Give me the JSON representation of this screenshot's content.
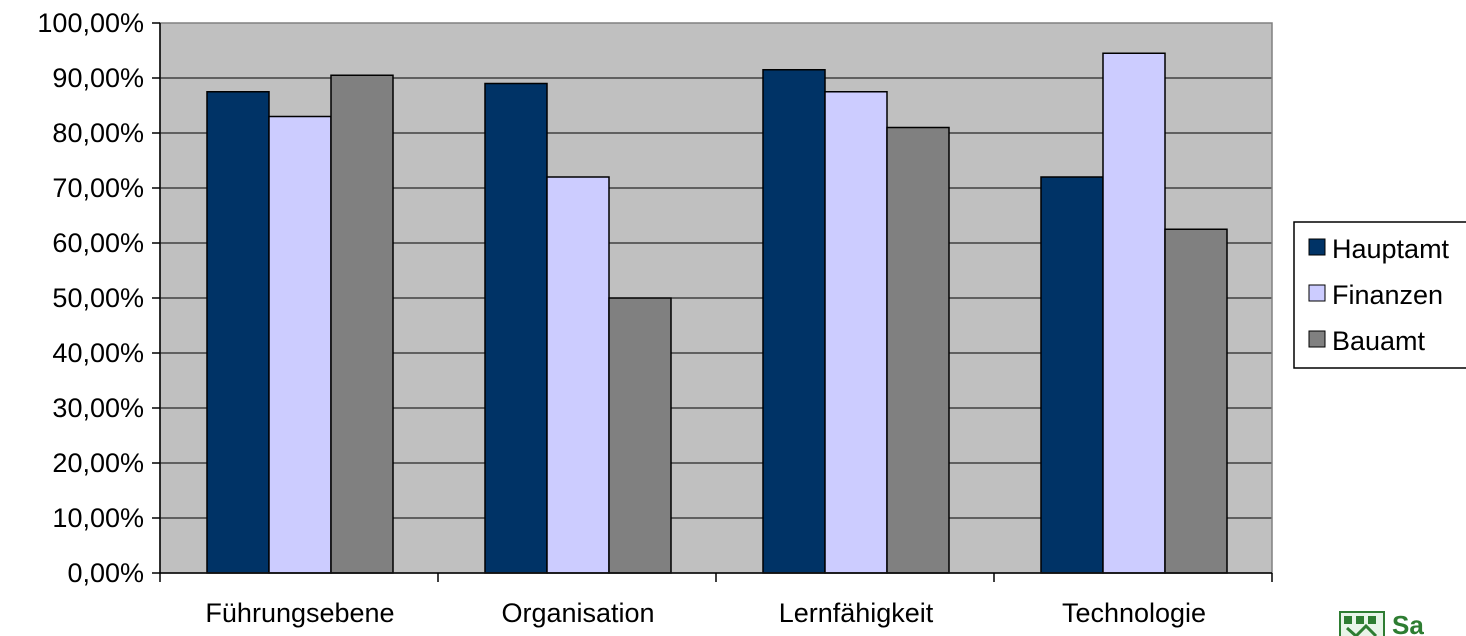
{
  "chart_data": {
    "type": "bar",
    "categories": [
      "Führungsebene",
      "Organisation",
      "Lernfähigkeit",
      "Technologie"
    ],
    "series": [
      {
        "name": "Hauptamt",
        "color": "#003366",
        "values": [
          87.5,
          89.0,
          91.5,
          72.0
        ]
      },
      {
        "name": "Finanzen",
        "color": "#ccccff",
        "values": [
          83.0,
          72.0,
          87.5,
          94.5
        ]
      },
      {
        "name": "Bauamt",
        "color": "#808080",
        "values": [
          90.5,
          50.0,
          81.0,
          62.5
        ]
      }
    ],
    "ylim": [
      0,
      100
    ],
    "yticks": [
      0,
      10,
      20,
      30,
      40,
      50,
      60,
      70,
      80,
      90,
      100
    ],
    "ytick_labels": [
      "0,00%",
      "10,00%",
      "20,00%",
      "30,00%",
      "40,00%",
      "50,00%",
      "60,00%",
      "70,00%",
      "80,00%",
      "90,00%",
      "100,00%"
    ],
    "grid": true,
    "legend": "right",
    "plot_background": "#c0c0c0"
  },
  "logo": {
    "text": "Sa",
    "color": "#2e7d32",
    "icon": "city-crest-icon"
  }
}
